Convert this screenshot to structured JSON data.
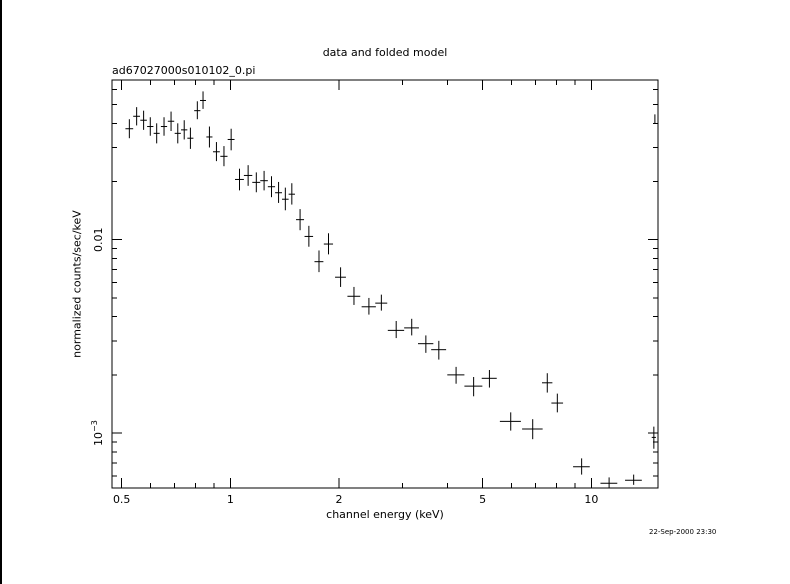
{
  "header": {
    "title": "data and folded model",
    "file_label": "ad67027000s010102_0.pi",
    "timestamp": "22-Sep-2000 23:30"
  },
  "chart_data": {
    "type": "scatter",
    "title": "data and folded model",
    "subtitle": "ad67027000s010102_0.pi",
    "xlabel": "channel energy (keV)",
    "ylabel": "normalized counts/sec/keV",
    "xscale": "log",
    "yscale": "log",
    "xlim": [
      0.47,
      15.3
    ],
    "ylim": [
      0.00052,
      0.067
    ],
    "xticks": [
      {
        "value": 0.5,
        "label": "0.5"
      },
      {
        "value": 1,
        "label": "1"
      },
      {
        "value": 2,
        "label": "2"
      },
      {
        "value": 5,
        "label": "5"
      },
      {
        "value": 10,
        "label": "10"
      }
    ],
    "yticks": [
      {
        "value": 0.01,
        "label": "0.01",
        "power": null
      },
      {
        "value": 0.001,
        "label": "10",
        "power": "−3"
      }
    ],
    "grid": false,
    "series": [
      {
        "style": "crosses with error bars",
        "points": [
          {
            "x": 0.525,
            "xerr": [
              0.013,
              0.013
            ],
            "y": 0.0375,
            "yerr": [
              0.004,
              0.0045
            ]
          },
          {
            "x": 0.55,
            "xerr": [
              0.012,
              0.012
            ],
            "y": 0.0435,
            "yerr": [
              0.0045,
              0.005
            ]
          },
          {
            "x": 0.575,
            "xerr": [
              0.012,
              0.012
            ],
            "y": 0.0415,
            "yerr": [
              0.0045,
              0.005
            ]
          },
          {
            "x": 0.6,
            "xerr": [
              0.012,
              0.012
            ],
            "y": 0.0385,
            "yerr": [
              0.004,
              0.0045
            ]
          },
          {
            "x": 0.625,
            "xerr": [
              0.012,
              0.012
            ],
            "y": 0.0355,
            "yerr": [
              0.004,
              0.0045
            ]
          },
          {
            "x": 0.655,
            "xerr": [
              0.013,
              0.013
            ],
            "y": 0.0385,
            "yerr": [
              0.004,
              0.0045
            ]
          },
          {
            "x": 0.685,
            "xerr": [
              0.014,
              0.014
            ],
            "y": 0.041,
            "yerr": [
              0.0045,
              0.005
            ]
          },
          {
            "x": 0.715,
            "xerr": [
              0.014,
              0.014
            ],
            "y": 0.0355,
            "yerr": [
              0.004,
              0.0045
            ]
          },
          {
            "x": 0.745,
            "xerr": [
              0.015,
              0.015
            ],
            "y": 0.037,
            "yerr": [
              0.004,
              0.0045
            ]
          },
          {
            "x": 0.775,
            "xerr": [
              0.015,
              0.015
            ],
            "y": 0.0335,
            "yerr": [
              0.004,
              0.0045
            ]
          },
          {
            "x": 0.81,
            "xerr": [
              0.016,
              0.016
            ],
            "y": 0.0465,
            "yerr": [
              0.0045,
              0.0055
            ]
          },
          {
            "x": 0.84,
            "xerr": [
              0.016,
              0.016
            ],
            "y": 0.0525,
            "yerr": [
              0.005,
              0.006
            ]
          },
          {
            "x": 0.875,
            "xerr": [
              0.017,
              0.017
            ],
            "y": 0.034,
            "yerr": [
              0.004,
              0.0045
            ]
          },
          {
            "x": 0.915,
            "xerr": [
              0.02,
              0.02
            ],
            "y": 0.0285,
            "yerr": [
              0.003,
              0.0035
            ]
          },
          {
            "x": 0.96,
            "xerr": [
              0.022,
              0.022
            ],
            "y": 0.027,
            "yerr": [
              0.003,
              0.0035
            ]
          },
          {
            "x": 1.005,
            "xerr": [
              0.022,
              0.022
            ],
            "y": 0.033,
            "yerr": [
              0.004,
              0.0045
            ]
          },
          {
            "x": 1.06,
            "xerr": [
              0.03,
              0.03
            ],
            "y": 0.0205,
            "yerr": [
              0.0025,
              0.0028
            ]
          },
          {
            "x": 1.12,
            "xerr": [
              0.03,
              0.03
            ],
            "y": 0.0215,
            "yerr": [
              0.0025,
              0.0028
            ]
          },
          {
            "x": 1.18,
            "xerr": [
              0.03,
              0.03
            ],
            "y": 0.0198,
            "yerr": [
              0.0022,
              0.0025
            ]
          },
          {
            "x": 1.24,
            "xerr": [
              0.03,
              0.03
            ],
            "y": 0.0202,
            "yerr": [
              0.0022,
              0.0025
            ]
          },
          {
            "x": 1.3,
            "xerr": [
              0.03,
              0.03
            ],
            "y": 0.0188,
            "yerr": [
              0.0022,
              0.0025
            ]
          },
          {
            "x": 1.36,
            "xerr": [
              0.03,
              0.03
            ],
            "y": 0.0175,
            "yerr": [
              0.002,
              0.0024
            ]
          },
          {
            "x": 1.42,
            "xerr": [
              0.03,
              0.03
            ],
            "y": 0.0162,
            "yerr": [
              0.002,
              0.0024
            ]
          },
          {
            "x": 1.48,
            "xerr": [
              0.03,
              0.03
            ],
            "y": 0.0172,
            "yerr": [
              0.002,
              0.0024
            ]
          },
          {
            "x": 1.56,
            "xerr": [
              0.04,
              0.04
            ],
            "y": 0.0127,
            "yerr": [
              0.0015,
              0.0017
            ]
          },
          {
            "x": 1.65,
            "xerr": [
              0.045,
              0.045
            ],
            "y": 0.0104,
            "yerr": [
              0.0012,
              0.0014
            ]
          },
          {
            "x": 1.76,
            "xerr": [
              0.05,
              0.05
            ],
            "y": 0.0077,
            "yerr": [
              0.0009,
              0.0011
            ]
          },
          {
            "x": 1.87,
            "xerr": [
              0.055,
              0.055
            ],
            "y": 0.0095,
            "yerr": [
              0.0011,
              0.0013
            ]
          },
          {
            "x": 2.02,
            "xerr": [
              0.07,
              0.07
            ],
            "y": 0.0064,
            "yerr": [
              0.0007,
              0.0008
            ]
          },
          {
            "x": 2.2,
            "xerr": [
              0.09,
              0.09
            ],
            "y": 0.0051,
            "yerr": [
              0.0005,
              0.0006
            ]
          },
          {
            "x": 2.42,
            "xerr": [
              0.11,
              0.11
            ],
            "y": 0.0045,
            "yerr": [
              0.0004,
              0.0005
            ]
          },
          {
            "x": 2.62,
            "xerr": [
              0.1,
              0.1
            ],
            "y": 0.0047,
            "yerr": [
              0.0004,
              0.0005
            ]
          },
          {
            "x": 2.88,
            "xerr": [
              0.15,
              0.15
            ],
            "y": 0.0034,
            "yerr": [
              0.0003,
              0.0004
            ]
          },
          {
            "x": 3.18,
            "xerr": [
              0.15,
              0.15
            ],
            "y": 0.0035,
            "yerr": [
              0.0003,
              0.0004
            ]
          },
          {
            "x": 3.48,
            "xerr": [
              0.17,
              0.17
            ],
            "y": 0.0029,
            "yerr": [
              0.0003,
              0.0003
            ]
          },
          {
            "x": 3.78,
            "xerr": [
              0.18,
              0.18
            ],
            "y": 0.0027,
            "yerr": [
              0.0003,
              0.0003
            ]
          },
          {
            "x": 4.22,
            "xerr": [
              0.23,
              0.23
            ],
            "y": 0.002,
            "yerr": [
              0.0002,
              0.0002
            ]
          },
          {
            "x": 4.72,
            "xerr": [
              0.27,
              0.27
            ],
            "y": 0.00175,
            "yerr": [
              0.0002,
              0.0002
            ]
          },
          {
            "x": 5.22,
            "xerr": [
              0.25,
              0.25
            ],
            "y": 0.00192,
            "yerr": [
              0.0002,
              0.0002
            ]
          },
          {
            "x": 5.98,
            "xerr": [
              0.4,
              0.4
            ],
            "y": 0.00115,
            "yerr": [
              0.00012,
              0.00013
            ]
          },
          {
            "x": 6.88,
            "xerr": [
              0.45,
              0.45
            ],
            "y": 0.00105,
            "yerr": [
              0.00012,
              0.00013
            ]
          },
          {
            "x": 7.55,
            "xerr": [
              0.25,
              0.25
            ],
            "y": 0.00182,
            "yerr": [
              0.0002,
              0.00022
            ]
          },
          {
            "x": 8.05,
            "xerr": [
              0.3,
              0.3
            ],
            "y": 0.00143,
            "yerr": [
              0.00015,
              0.00017
            ]
          },
          {
            "x": 9.4,
            "xerr": [
              0.5,
              0.5
            ],
            "y": 0.00067,
            "yerr": [
              6e-05,
              7e-05
            ]
          },
          {
            "x": 11.2,
            "xerr": [
              0.6,
              0.6
            ],
            "y": 0.00055,
            "yerr": [
              3e-05,
              4e-05
            ]
          },
          {
            "x": 13.1,
            "xerr": [
              0.7,
              0.7
            ],
            "y": 0.00057,
            "yerr": [
              3e-05,
              4e-05
            ]
          },
          {
            "x": 14.9,
            "xerr": [
              0.2,
              0.2
            ],
            "y": 0.00095,
            "yerr": [
              0.00012,
              0.00013
            ]
          },
          {
            "x": 15.0,
            "xerr": [
              0,
              0
            ],
            "y": 0.042,
            "yerr": [
              0.002,
              0.0025
            ]
          }
        ]
      }
    ]
  }
}
